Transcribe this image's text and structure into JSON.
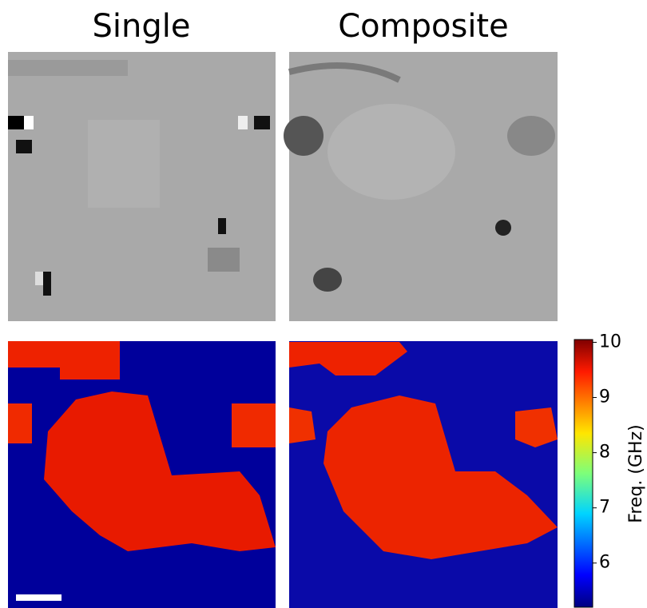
{
  "chart_data": {
    "type": "heatmap",
    "titles": [
      "Single",
      "Composite"
    ],
    "colorbar": {
      "label": "Freq. (GHz)",
      "lim": [
        5.2,
        10.05
      ],
      "ticks": [
        6,
        7,
        8,
        9,
        10
      ]
    }
  }
}
